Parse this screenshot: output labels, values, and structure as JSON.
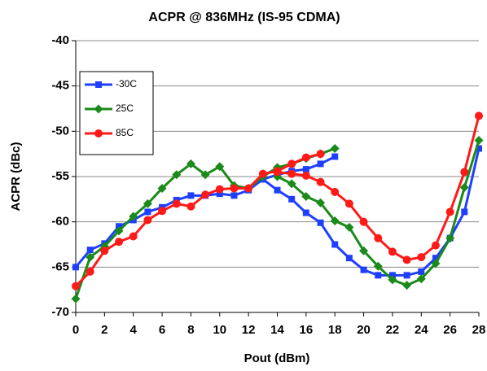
{
  "chart_data": {
    "type": "line",
    "title": "ACPR @ 836MHz (IS-95 CDMA)",
    "x_label": "Pout (dBm)",
    "y_label": "ACPR (dBc)",
    "xlim": [
      0,
      28
    ],
    "xticks": [
      0,
      2,
      4,
      6,
      8,
      10,
      12,
      14,
      16,
      18,
      20,
      22,
      24,
      26,
      28
    ],
    "ylim": [
      -70,
      -40
    ],
    "yticks": [
      -70,
      -65,
      -60,
      -55,
      -50,
      -45,
      -40
    ],
    "grid": true,
    "legend": "upper left",
    "series": [
      {
        "name": "-30C",
        "color": "#1f3fff",
        "marker": "square",
        "x": [
          0,
          1,
          2,
          3,
          4,
          5,
          6,
          7,
          8,
          9,
          10,
          11,
          12,
          13,
          14,
          15,
          16,
          17,
          18,
          null,
          13,
          14,
          15,
          16,
          17,
          18,
          19,
          20,
          21,
          22,
          23,
          24,
          25,
          26,
          27,
          28
        ],
        "values": [
          -65,
          -63.1,
          -62.4,
          -60.5,
          -59.8,
          -58.9,
          -58.4,
          -57.6,
          -57.1,
          -57.1,
          -56.9,
          -57.1,
          -56.5,
          -55.3,
          -54.8,
          -54.4,
          -54.2,
          -53.6,
          -52.8,
          null,
          -55.3,
          -56.5,
          -57.5,
          -59.0,
          -60.1,
          -62.5,
          -64.0,
          -65.3,
          -65.9,
          -65.9,
          -65.9,
          -65.5,
          -64.0,
          -61.8,
          -58.9,
          -51.9
        ]
      },
      {
        "name": "25C",
        "color": "#1a8a1a",
        "marker": "diamond",
        "x": [
          0,
          1,
          2,
          3,
          4,
          5,
          6,
          7,
          8,
          9,
          10,
          11,
          12,
          13,
          14,
          15,
          16,
          17,
          18,
          null,
          14,
          15,
          16,
          17,
          18,
          19,
          20,
          21,
          22,
          23,
          24,
          25,
          26,
          27,
          28
        ],
        "values": [
          -68.5,
          -63.9,
          -62.7,
          -61.0,
          -59.4,
          -58.0,
          -56.3,
          -54.8,
          -53.6,
          -54.8,
          -53.9,
          -56.0,
          -56.3,
          -55.0,
          -54.0,
          -53.6,
          -53.0,
          -52.5,
          -51.9,
          null,
          -55.0,
          -55.8,
          -57.2,
          -57.9,
          -59.9,
          -60.6,
          -63.2,
          -64.9,
          -66.4,
          -67.0,
          -66.3,
          -64.6,
          -61.8,
          -56.2,
          -51.0
        ]
      },
      {
        "name": "85C",
        "color": "#ff1a1a",
        "marker": "circle",
        "x": [
          0,
          1,
          2,
          3,
          4,
          5,
          6,
          7,
          8,
          9,
          10,
          11,
          12,
          13,
          14,
          15,
          16,
          17,
          null,
          14,
          15,
          16,
          17,
          18,
          19,
          20,
          21,
          22,
          23,
          24,
          25,
          26,
          27,
          28
        ],
        "values": [
          -67.1,
          -65.5,
          -63.2,
          -62.2,
          -61.6,
          -59.8,
          -58.8,
          -58.0,
          -58.3,
          -57.0,
          -56.4,
          -56.3,
          -56.3,
          -54.7,
          -54.4,
          -53.6,
          -52.9,
          -52.5,
          null,
          -54.5,
          -54.7,
          -54.9,
          -55.6,
          -56.7,
          -58.0,
          -60.0,
          -61.8,
          -63.3,
          -64.2,
          -63.9,
          -62.6,
          -58.9,
          -54.5,
          -48.3
        ]
      }
    ]
  }
}
